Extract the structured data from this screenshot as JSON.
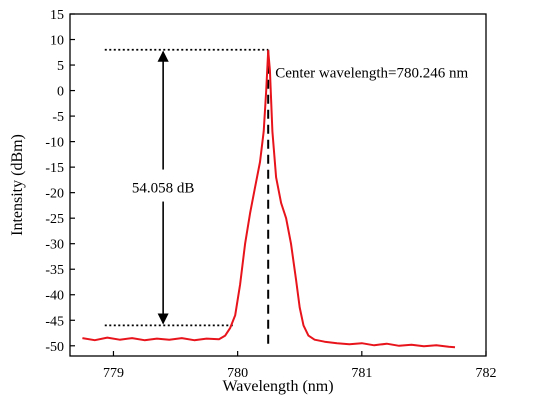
{
  "chart_data": {
    "type": "line",
    "xlabel": "Wavelength (nm)",
    "ylabel": "Intensity (dBm)",
    "xlim": [
      778.65,
      782.0
    ],
    "ylim": [
      -52,
      15
    ],
    "x_ticks": [
      779,
      780,
      781,
      782
    ],
    "y_ticks": [
      15,
      10,
      5,
      0,
      -5,
      -10,
      -15,
      -20,
      -25,
      -30,
      -35,
      -40,
      -45,
      -50
    ],
    "grid": false,
    "series": [
      {
        "color": "#e8141c",
        "x": [
          778.75,
          778.85,
          778.95,
          779.05,
          779.15,
          779.25,
          779.35,
          779.45,
          779.55,
          779.65,
          779.75,
          779.85,
          779.9,
          779.94,
          779.98,
          780.02,
          780.06,
          780.1,
          780.14,
          780.18,
          780.21,
          780.23,
          780.246,
          780.26,
          780.28,
          780.31,
          780.35,
          780.39,
          780.43,
          780.47,
          780.5,
          780.53,
          780.57,
          780.62,
          780.7,
          780.8,
          780.9,
          781.0,
          781.1,
          781.2,
          781.3,
          781.4,
          781.5,
          781.6,
          781.7,
          781.75
        ],
        "y": [
          -48.5,
          -48.9,
          -48.4,
          -48.8,
          -48.5,
          -48.9,
          -48.6,
          -48.8,
          -48.5,
          -48.9,
          -48.6,
          -48.7,
          -48.0,
          -46.5,
          -44.0,
          -38.0,
          -30.0,
          -24.0,
          -19.0,
          -14.0,
          -8.0,
          0.0,
          7.8,
          4.0,
          -8.0,
          -17.0,
          -22.0,
          -25.0,
          -30.0,
          -37.0,
          -42.5,
          -46.0,
          -48.0,
          -48.8,
          -49.2,
          -49.5,
          -49.7,
          -49.5,
          -49.9,
          -49.6,
          -50.0,
          -49.8,
          -50.1,
          -49.9,
          -50.2,
          -50.3
        ]
      }
    ],
    "annotations": {
      "center_label": "Center wavelength=780.246 nm",
      "center_x": 780.246,
      "peak_level": 8.0,
      "floor_level": -46.0,
      "span_label": "54.058 dB",
      "span_arrow_x": 779.4,
      "span_label_y": -19.0
    }
  }
}
